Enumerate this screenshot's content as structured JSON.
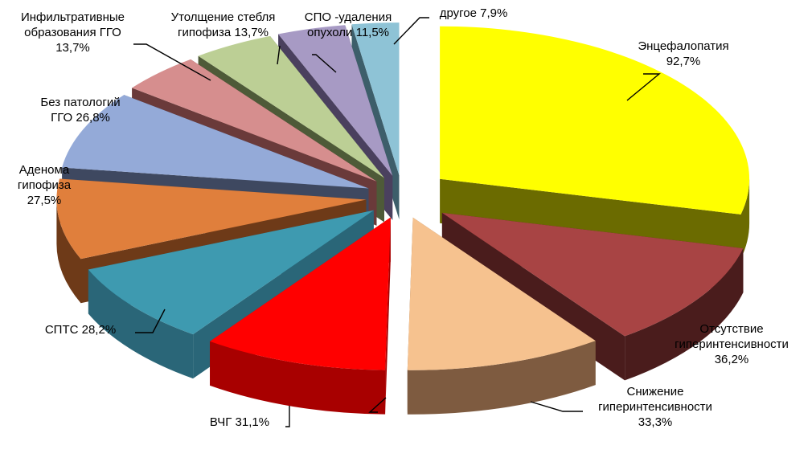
{
  "chart_data": {
    "type": "pie",
    "three_d": true,
    "exploded": true,
    "slices": [
      {
        "name": "Энцефалопатия",
        "value": 92.7,
        "label": "Энцефалопатия\n92,7%",
        "color": "#ffff00",
        "side": "#6b6b00"
      },
      {
        "name": "Отсутствие гиперинтенсивности",
        "value": 36.2,
        "label": "Отсутствие\nгиперинтенсивности\n36,2%",
        "color": "#a84444",
        "side": "#4a1c1c"
      },
      {
        "name": "Снижение гиперинтенсивности",
        "value": 33.3,
        "label": "Снижение\nгиперинтенсивности\n33,3%",
        "color": "#f6c28f",
        "side": "#7e5b40"
      },
      {
        "name": "ВЧГ",
        "value": 31.1,
        "label": "ВЧГ 31,1%",
        "color": "#ff0000",
        "side": "#a80000"
      },
      {
        "name": "СПТС",
        "value": 28.2,
        "label": "СПТС 28,2%",
        "color": "#3e9ab0",
        "side": "#2a6678"
      },
      {
        "name": "Аденома гипофиза",
        "value": 27.5,
        "label": "Аденома\nгипофиза\n27,5%",
        "color": "#e07f3c",
        "side": "#6e3a18"
      },
      {
        "name": "Без патологий ГГО",
        "value": 26.8,
        "label": "Без патологий\nГГО  26,8%",
        "color": "#94aad8",
        "side": "#3e4860"
      },
      {
        "name": "Инфильтративные образования ГГО",
        "value": 13.7,
        "label": "Инфильтративные\nобразования ГГО\n13,7%",
        "color": "#d68e8e",
        "side": "#6a3a3a"
      },
      {
        "name": "Утолщение стебля гипофиза",
        "value": 13.7,
        "label": "Утолщение стебля\nгипофиза 13,7%",
        "color": "#bccf95",
        "side": "#4e5a38"
      },
      {
        "name": "СПО -удаления опухоли",
        "value": 11.5,
        "label": "СПО -удаления\nопухоли 11,5%",
        "color": "#a79ac4",
        "side": "#4a405e"
      },
      {
        "name": "другое",
        "value": 7.9,
        "label": "другое  7,9%",
        "color": "#8ec3d6",
        "side": "#3d5e6a"
      }
    ]
  }
}
